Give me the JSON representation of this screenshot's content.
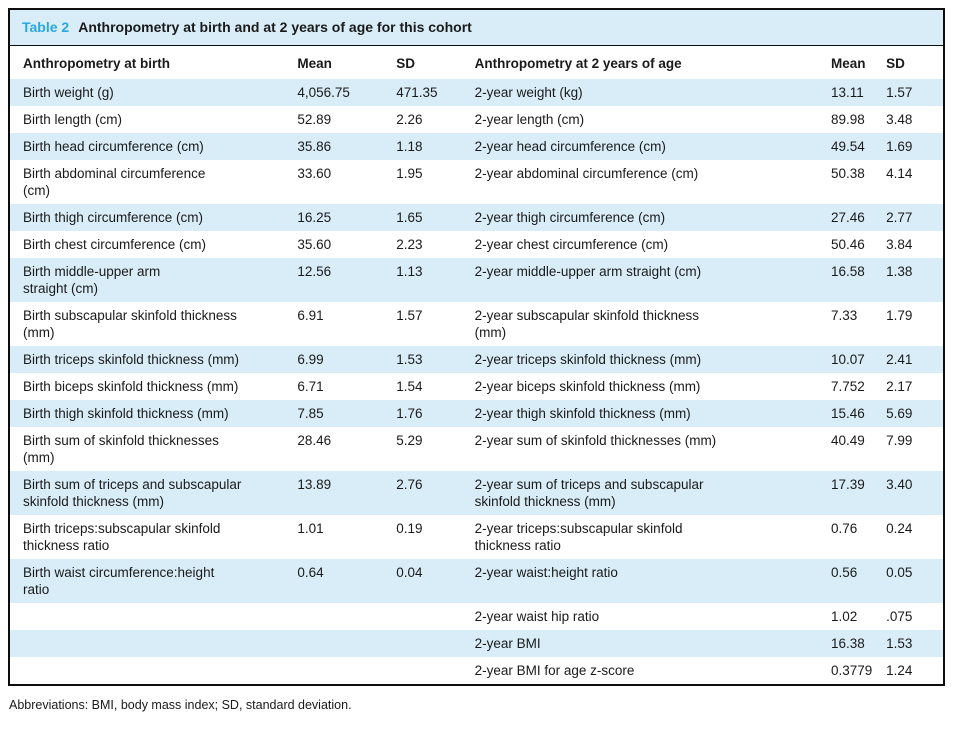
{
  "page": {
    "footnote": "Abbreviations: BMI, body mass index; SD, standard deviation."
  },
  "table": {
    "label": "Table 2",
    "title": "Anthropometry at birth and at 2 years of age for this cohort",
    "columns": {
      "birth_label": "Anthropometry at birth",
      "birth_mean": "Mean",
      "birth_sd": "SD",
      "year2_label": "Anthropometry at 2 years of age",
      "year2_mean": "Mean",
      "year2_sd": "SD"
    },
    "rows": [
      {
        "birth_label": "Birth weight (g)",
        "birth_mean": "4,056.75",
        "birth_sd": "471.35",
        "year2_label": "2-year weight (kg)",
        "year2_mean": "13.11",
        "year2_sd": "1.57"
      },
      {
        "birth_label": "Birth length (cm)",
        "birth_mean": "52.89",
        "birth_sd": "2.26",
        "year2_label": "2-year length (cm)",
        "year2_mean": "89.98",
        "year2_sd": "3.48"
      },
      {
        "birth_label": "Birth head circumference (cm)",
        "birth_mean": "35.86",
        "birth_sd": "1.18",
        "year2_label": "2-year head circumference (cm)",
        "year2_mean": "49.54",
        "year2_sd": "1.69"
      },
      {
        "birth_label": "Birth abdominal circumference\n(cm)",
        "birth_mean": "33.60",
        "birth_sd": "1.95",
        "year2_label": "2-year abdominal circumference (cm)",
        "year2_mean": "50.38",
        "year2_sd": "4.14"
      },
      {
        "birth_label": "Birth thigh circumference (cm)",
        "birth_mean": "16.25",
        "birth_sd": "1.65",
        "year2_label": "2-year thigh circumference (cm)",
        "year2_mean": "27.46",
        "year2_sd": "2.77"
      },
      {
        "birth_label": "Birth chest circumference (cm)",
        "birth_mean": "35.60",
        "birth_sd": "2.23",
        "year2_label": "2-year chest circumference (cm)",
        "year2_mean": "50.46",
        "year2_sd": "3.84"
      },
      {
        "birth_label": "Birth middle-upper arm\nstraight (cm)",
        "birth_mean": "12.56",
        "birth_sd": "1.13",
        "year2_label": "2-year middle-upper arm straight (cm)",
        "year2_mean": "16.58",
        "year2_sd": "1.38"
      },
      {
        "birth_label": "Birth subscapular skinfold thickness\n(mm)",
        "birth_mean": "6.91",
        "birth_sd": "1.57",
        "year2_label": "2-year subscapular skinfold thickness\n(mm)",
        "year2_mean": "7.33",
        "year2_sd": "1.79"
      },
      {
        "birth_label": "Birth triceps skinfold thickness (mm)",
        "birth_mean": "6.99",
        "birth_sd": "1.53",
        "year2_label": "2-year triceps skinfold thickness (mm)",
        "year2_mean": "10.07",
        "year2_sd": "2.41"
      },
      {
        "birth_label": "Birth biceps skinfold thickness (mm)",
        "birth_mean": "6.71",
        "birth_sd": "1.54",
        "year2_label": "2-year biceps skinfold thickness (mm)",
        "year2_mean": "7.752",
        "year2_sd": "2.17"
      },
      {
        "birth_label": "Birth thigh skinfold thickness (mm)",
        "birth_mean": "7.85",
        "birth_sd": "1.76",
        "year2_label": "2-year thigh skinfold thickness (mm)",
        "year2_mean": "15.46",
        "year2_sd": "5.69"
      },
      {
        "birth_label": "Birth sum of skinfold thicknesses\n(mm)",
        "birth_mean": "28.46",
        "birth_sd": "5.29",
        "year2_label": "2-year sum of skinfold thicknesses (mm)",
        "year2_mean": "40.49",
        "year2_sd": "7.99"
      },
      {
        "birth_label": "Birth sum of triceps and subscapular\nskinfold thickness (mm)",
        "birth_mean": "13.89",
        "birth_sd": "2.76",
        "year2_label": "2-year sum of triceps and subscapular\nskinfold thickness (mm)",
        "year2_mean": "17.39",
        "year2_sd": "3.40"
      },
      {
        "birth_label": "Birth triceps:subscapular skinfold\nthickness ratio",
        "birth_mean": "1.01",
        "birth_sd": "0.19",
        "year2_label": "2-year triceps:subscapular skinfold\nthickness ratio",
        "year2_mean": "0.76",
        "year2_sd": "0.24"
      },
      {
        "birth_label": "Birth waist circumference:height\nratio",
        "birth_mean": "0.64",
        "birth_sd": "0.04",
        "year2_label": "2-year waist:height ratio",
        "year2_mean": "0.56",
        "year2_sd": "0.05"
      },
      {
        "birth_label": "",
        "birth_mean": "",
        "birth_sd": "",
        "year2_label": "2-year waist hip ratio",
        "year2_mean": "1.02",
        "year2_sd": ".075"
      },
      {
        "birth_label": "",
        "birth_mean": "",
        "birth_sd": "",
        "year2_label": "2-year BMI",
        "year2_mean": "16.38",
        "year2_sd": "1.53"
      },
      {
        "birth_label": "",
        "birth_mean": "",
        "birth_sd": "",
        "year2_label": "2-year BMI for age z-score",
        "year2_mean": "0.3779",
        "year2_sd": "1.24"
      }
    ]
  },
  "colors": {
    "accent": "#29a8e0",
    "stripe": "#d9edf8",
    "border": "#0d0d0d",
    "text": "#1a1a1a"
  }
}
